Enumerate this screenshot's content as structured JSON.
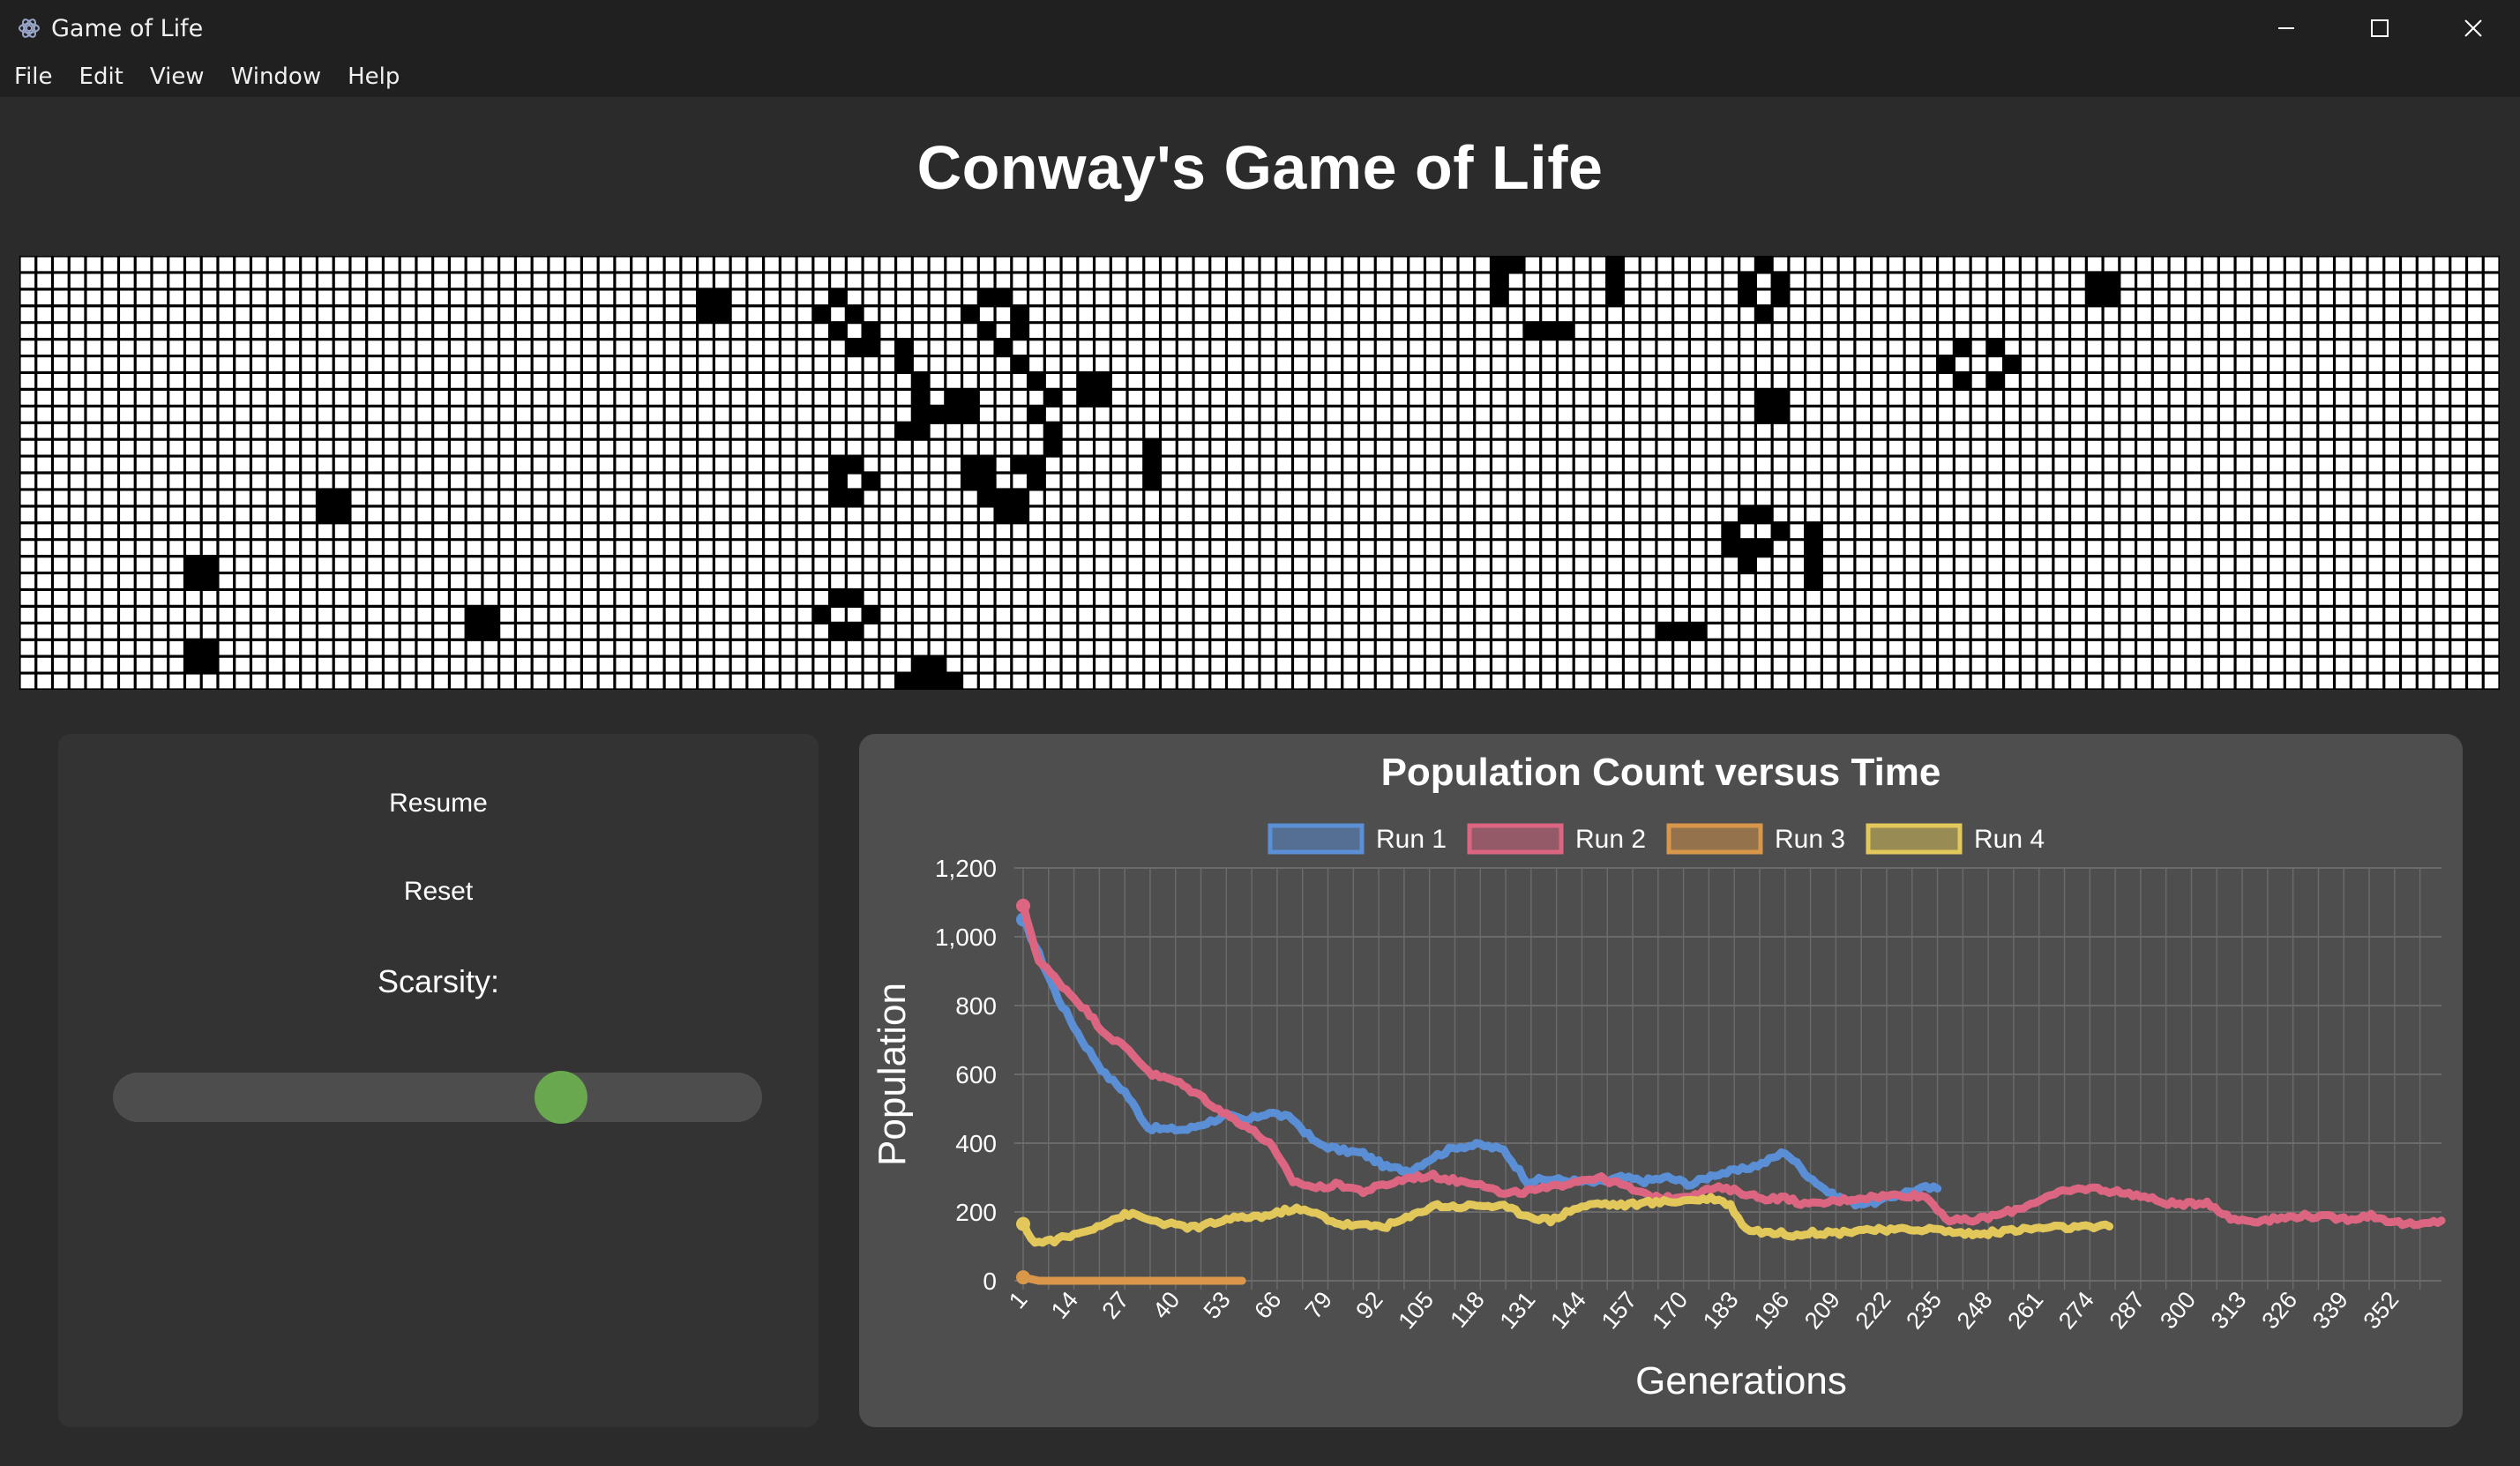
{
  "window": {
    "title": "Game of Life"
  },
  "menu": [
    "File",
    "Edit",
    "View",
    "Window",
    "Help"
  ],
  "page": {
    "heading": "Conway's Game of Life"
  },
  "grid": {
    "cols": 150,
    "rows": 26,
    "live_color": "#000000",
    "dead_color": "#ffffff",
    "line_color": "#000000",
    "live_cells": [
      [
        89,
        0
      ],
      [
        90,
        0
      ],
      [
        96,
        0
      ],
      [
        105,
        0
      ],
      [
        89,
        1
      ],
      [
        96,
        1
      ],
      [
        104,
        1
      ],
      [
        106,
        1
      ],
      [
        125,
        1
      ],
      [
        126,
        1
      ],
      [
        41,
        2
      ],
      [
        42,
        2
      ],
      [
        49,
        2
      ],
      [
        58,
        2
      ],
      [
        59,
        2
      ],
      [
        89,
        2
      ],
      [
        96,
        2
      ],
      [
        104,
        2
      ],
      [
        106,
        2
      ],
      [
        125,
        2
      ],
      [
        126,
        2
      ],
      [
        41,
        3
      ],
      [
        42,
        3
      ],
      [
        48,
        3
      ],
      [
        50,
        3
      ],
      [
        57,
        3
      ],
      [
        60,
        3
      ],
      [
        105,
        3
      ],
      [
        49,
        4
      ],
      [
        51,
        4
      ],
      [
        58,
        4
      ],
      [
        60,
        4
      ],
      [
        91,
        4
      ],
      [
        92,
        4
      ],
      [
        93,
        4
      ],
      [
        50,
        5
      ],
      [
        51,
        5
      ],
      [
        53,
        5
      ],
      [
        59,
        5
      ],
      [
        117,
        5
      ],
      [
        119,
        5
      ],
      [
        53,
        6
      ],
      [
        60,
        6
      ],
      [
        116,
        6
      ],
      [
        120,
        6
      ],
      [
        54,
        7
      ],
      [
        61,
        7
      ],
      [
        64,
        7
      ],
      [
        65,
        7
      ],
      [
        117,
        7
      ],
      [
        119,
        7
      ],
      [
        54,
        8
      ],
      [
        56,
        8
      ],
      [
        57,
        8
      ],
      [
        62,
        8
      ],
      [
        64,
        8
      ],
      [
        65,
        8
      ],
      [
        105,
        8
      ],
      [
        106,
        8
      ],
      [
        54,
        9
      ],
      [
        55,
        9
      ],
      [
        56,
        9
      ],
      [
        57,
        9
      ],
      [
        61,
        9
      ],
      [
        105,
        9
      ],
      [
        106,
        9
      ],
      [
        53,
        10
      ],
      [
        54,
        10
      ],
      [
        62,
        10
      ],
      [
        62,
        11
      ],
      [
        68,
        11
      ],
      [
        49,
        12
      ],
      [
        50,
        12
      ],
      [
        57,
        12
      ],
      [
        58,
        12
      ],
      [
        60,
        12
      ],
      [
        61,
        12
      ],
      [
        68,
        12
      ],
      [
        49,
        13
      ],
      [
        51,
        13
      ],
      [
        57,
        13
      ],
      [
        58,
        13
      ],
      [
        61,
        13
      ],
      [
        68,
        13
      ],
      [
        18,
        14
      ],
      [
        19,
        14
      ],
      [
        49,
        14
      ],
      [
        50,
        14
      ],
      [
        58,
        14
      ],
      [
        59,
        14
      ],
      [
        60,
        14
      ],
      [
        18,
        15
      ],
      [
        19,
        15
      ],
      [
        59,
        15
      ],
      [
        60,
        15
      ],
      [
        104,
        15
      ],
      [
        105,
        15
      ],
      [
        103,
        16
      ],
      [
        106,
        16
      ],
      [
        108,
        16
      ],
      [
        103,
        17
      ],
      [
        104,
        17
      ],
      [
        105,
        17
      ],
      [
        108,
        17
      ],
      [
        10,
        18
      ],
      [
        11,
        18
      ],
      [
        104,
        18
      ],
      [
        108,
        18
      ],
      [
        10,
        19
      ],
      [
        11,
        19
      ],
      [
        108,
        19
      ],
      [
        49,
        20
      ],
      [
        50,
        20
      ],
      [
        27,
        21
      ],
      [
        28,
        21
      ],
      [
        48,
        21
      ],
      [
        51,
        21
      ],
      [
        27,
        22
      ],
      [
        28,
        22
      ],
      [
        49,
        22
      ],
      [
        50,
        22
      ],
      [
        99,
        22
      ],
      [
        100,
        22
      ],
      [
        101,
        22
      ],
      [
        10,
        23
      ],
      [
        11,
        23
      ],
      [
        10,
        24
      ],
      [
        11,
        24
      ],
      [
        54,
        24
      ],
      [
        55,
        24
      ],
      [
        53,
        25
      ],
      [
        54,
        25
      ],
      [
        55,
        25
      ],
      [
        56,
        25
      ]
    ]
  },
  "controls": {
    "resume": "Resume",
    "reset": "Reset",
    "scarsity_label": "Scarsity:",
    "scarsity_value": 0.69,
    "slider_track_color": "#4d4d4d",
    "slider_thumb_color": "#6aa84f"
  },
  "chart_data": {
    "type": "line",
    "title": "Population Count versus Time",
    "xlabel": "Generations",
    "ylabel": "Population",
    "ylim": [
      0,
      1200
    ],
    "yticks": [
      "0",
      "200",
      "400",
      "600",
      "800",
      "1,000",
      "1,200"
    ],
    "xticks": [
      "1",
      "14",
      "27",
      "40",
      "53",
      "66",
      "79",
      "92",
      "105",
      "118",
      "131",
      "144",
      "157",
      "170",
      "183",
      "196",
      "209",
      "222",
      "235",
      "248",
      "261",
      "274",
      "287",
      "300",
      "313",
      "326",
      "339",
      "352"
    ],
    "grid": true,
    "legend_position": "top",
    "x_range": [
      1,
      364
    ],
    "series": [
      {
        "name": "Run 1",
        "color": "#5b8fd6",
        "points": [
          [
            1,
            1050
          ],
          [
            5,
            950
          ],
          [
            10,
            820
          ],
          [
            16,
            700
          ],
          [
            22,
            600
          ],
          [
            27,
            550
          ],
          [
            33,
            445
          ],
          [
            38,
            440
          ],
          [
            43,
            440
          ],
          [
            48,
            460
          ],
          [
            53,
            480
          ],
          [
            58,
            465
          ],
          [
            64,
            490
          ],
          [
            70,
            470
          ],
          [
            76,
            400
          ],
          [
            82,
            380
          ],
          [
            88,
            370
          ],
          [
            94,
            330
          ],
          [
            100,
            320
          ],
          [
            106,
            360
          ],
          [
            112,
            390
          ],
          [
            118,
            395
          ],
          [
            124,
            380
          ],
          [
            130,
            290
          ],
          [
            136,
            295
          ],
          [
            142,
            290
          ],
          [
            148,
            285
          ],
          [
            154,
            300
          ],
          [
            160,
            290
          ],
          [
            166,
            300
          ],
          [
            172,
            280
          ],
          [
            178,
            310
          ],
          [
            184,
            320
          ],
          [
            190,
            340
          ],
          [
            196,
            375
          ],
          [
            202,
            305
          ],
          [
            208,
            250
          ],
          [
            214,
            225
          ],
          [
            220,
            230
          ],
          [
            226,
            255
          ],
          [
            232,
            270
          ],
          [
            235,
            268
          ]
        ]
      },
      {
        "name": "Run 2",
        "color": "#dc6682",
        "points": [
          [
            1,
            1090
          ],
          [
            5,
            930
          ],
          [
            10,
            870
          ],
          [
            16,
            800
          ],
          [
            22,
            720
          ],
          [
            28,
            670
          ],
          [
            34,
            600
          ],
          [
            40,
            580
          ],
          [
            46,
            540
          ],
          [
            52,
            490
          ],
          [
            58,
            450
          ],
          [
            64,
            400
          ],
          [
            70,
            290
          ],
          [
            76,
            270
          ],
          [
            82,
            280
          ],
          [
            88,
            260
          ],
          [
            94,
            280
          ],
          [
            100,
            300
          ],
          [
            106,
            305
          ],
          [
            112,
            290
          ],
          [
            118,
            285
          ],
          [
            124,
            250
          ],
          [
            130,
            260
          ],
          [
            136,
            270
          ],
          [
            142,
            290
          ],
          [
            148,
            300
          ],
          [
            154,
            280
          ],
          [
            160,
            250
          ],
          [
            166,
            240
          ],
          [
            172,
            250
          ],
          [
            178,
            270
          ],
          [
            184,
            260
          ],
          [
            190,
            240
          ],
          [
            196,
            240
          ],
          [
            202,
            220
          ],
          [
            208,
            230
          ],
          [
            214,
            240
          ],
          [
            220,
            245
          ],
          [
            226,
            250
          ],
          [
            232,
            245
          ],
          [
            238,
            175
          ],
          [
            244,
            175
          ],
          [
            250,
            190
          ],
          [
            256,
            210
          ],
          [
            262,
            240
          ],
          [
            268,
            260
          ],
          [
            274,
            270
          ],
          [
            280,
            260
          ],
          [
            286,
            250
          ],
          [
            292,
            230
          ],
          [
            298,
            220
          ],
          [
            304,
            230
          ],
          [
            310,
            180
          ],
          [
            316,
            175
          ],
          [
            322,
            180
          ],
          [
            328,
            190
          ],
          [
            334,
            185
          ],
          [
            340,
            180
          ],
          [
            346,
            190
          ],
          [
            352,
            170
          ],
          [
            358,
            160
          ],
          [
            364,
            175
          ]
        ]
      },
      {
        "name": "Run 3",
        "color": "#d9974a",
        "points": [
          [
            1,
            10
          ],
          [
            5,
            0
          ],
          [
            10,
            0
          ],
          [
            20,
            0
          ],
          [
            30,
            0
          ],
          [
            40,
            0
          ],
          [
            50,
            0
          ],
          [
            57,
            0
          ]
        ]
      },
      {
        "name": "Run 4",
        "color": "#e2c85a",
        "points": [
          [
            1,
            165
          ],
          [
            4,
            110
          ],
          [
            10,
            120
          ],
          [
            16,
            140
          ],
          [
            22,
            170
          ],
          [
            28,
            195
          ],
          [
            34,
            175
          ],
          [
            40,
            160
          ],
          [
            46,
            155
          ],
          [
            52,
            175
          ],
          [
            58,
            185
          ],
          [
            64,
            190
          ],
          [
            70,
            210
          ],
          [
            76,
            195
          ],
          [
            82,
            165
          ],
          [
            88,
            160
          ],
          [
            94,
            160
          ],
          [
            100,
            185
          ],
          [
            106,
            220
          ],
          [
            112,
            215
          ],
          [
            118,
            220
          ],
          [
            124,
            215
          ],
          [
            130,
            190
          ],
          [
            136,
            175
          ],
          [
            142,
            210
          ],
          [
            148,
            225
          ],
          [
            154,
            220
          ],
          [
            160,
            225
          ],
          [
            166,
            230
          ],
          [
            172,
            235
          ],
          [
            178,
            240
          ],
          [
            182,
            220
          ],
          [
            186,
            150
          ],
          [
            192,
            140
          ],
          [
            198,
            135
          ],
          [
            204,
            140
          ],
          [
            210,
            140
          ],
          [
            216,
            150
          ],
          [
            222,
            145
          ],
          [
            228,
            150
          ],
          [
            234,
            150
          ],
          [
            240,
            140
          ],
          [
            246,
            135
          ],
          [
            252,
            145
          ],
          [
            258,
            150
          ],
          [
            264,
            155
          ],
          [
            270,
            155
          ],
          [
            276,
            155
          ],
          [
            279,
            158
          ]
        ]
      }
    ]
  }
}
